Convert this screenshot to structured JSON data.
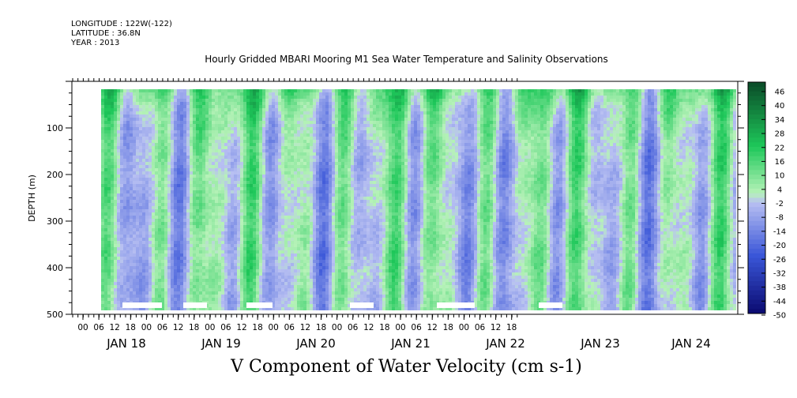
{
  "header": {
    "longitude": "LONGITUDE : 122W(-122)",
    "latitude": "LATITUDE : 36.8N",
    "year": "YEAR : 2013"
  },
  "chart_data": {
    "type": "heatmap",
    "title": "Hourly Gridded MBARI Mooring M1 Sea Water Temperature and Salinity Observations",
    "bottom_title": "V Component of Water Velocity (cm s-1)",
    "ylabel": "DEPTH (m)",
    "ylim": [
      500,
      0
    ],
    "y_ticks": [
      "100",
      "200",
      "300",
      "400",
      "500"
    ],
    "x_hour_ticks": [
      "00",
      "06",
      "12",
      "18",
      "00",
      "06",
      "12",
      "18",
      "00",
      "06",
      "12",
      "18",
      "00",
      "06",
      "12",
      "18",
      "00",
      "06",
      "12",
      "18",
      "00",
      "06",
      "12",
      "18",
      "00",
      "06",
      "12",
      "18"
    ],
    "x_day_labels": [
      "JAN 18",
      "JAN 19",
      "JAN 20",
      "JAN 21",
      "JAN 22",
      "JAN 23",
      "JAN 24"
    ],
    "colorbar_labels": [
      "46",
      "40",
      "34",
      "28",
      "22",
      "16",
      "10",
      "4",
      "-2",
      "-8",
      "-14",
      "-20",
      "-26",
      "-32",
      "-38",
      "-44",
      "-50"
    ],
    "colorbar_range": [
      -50,
      50
    ],
    "colors": {
      "negative_strong": "#0a0a70",
      "negative_mid": "#3a56d8",
      "negative_weak": "#b8c0f2",
      "positive_weak": "#b6f2b8",
      "positive_mid": "#1ec85a",
      "positive_strong": "#0a4a28"
    }
  }
}
